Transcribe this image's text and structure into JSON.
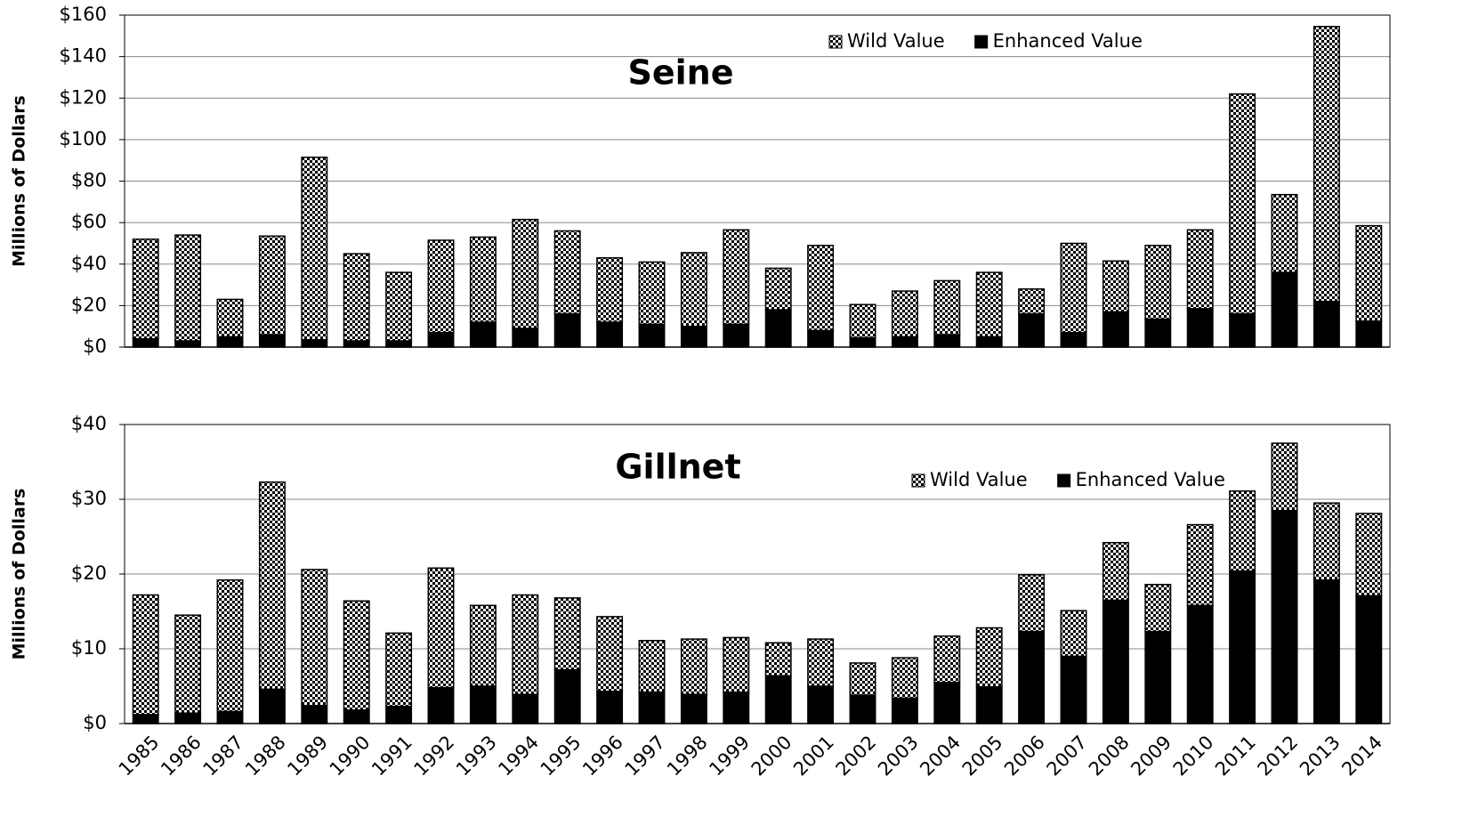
{
  "chart_data": [
    {
      "type": "stacked-bar",
      "title": "Seine",
      "ylabel": "Millions of Dollars",
      "ylim": [
        0,
        160
      ],
      "yticks": [
        {
          "value": 0,
          "label": "$0"
        },
        {
          "value": 20,
          "label": "$20"
        },
        {
          "value": 40,
          "label": "$40"
        },
        {
          "value": 60,
          "label": "$60"
        },
        {
          "value": 80,
          "label": "$80"
        },
        {
          "value": 100,
          "label": "$100"
        },
        {
          "value": 120,
          "label": "$120"
        },
        {
          "value": 140,
          "label": "$140"
        },
        {
          "value": 160,
          "label": "$160"
        }
      ],
      "grid": true,
      "legend": "top-right",
      "series": [
        {
          "name": "Wild Value",
          "color": "#000000",
          "pattern": "checker",
          "values": [
            48,
            51,
            18,
            47.5,
            88,
            42,
            33,
            44.5,
            41,
            52.5,
            40,
            31,
            30,
            35.5,
            45.5,
            20,
            41,
            16,
            22,
            26,
            31,
            12,
            43,
            24.5,
            35.5,
            38,
            106,
            37.5,
            132.5,
            46
          ]
        },
        {
          "name": "Enhanced Value",
          "color": "#000000",
          "values": [
            4,
            3,
            5,
            6,
            3.5,
            3,
            3,
            7,
            12,
            9,
            16,
            12,
            11,
            10,
            11,
            18,
            8,
            4.5,
            5,
            6,
            5,
            16,
            7,
            17,
            13.5,
            18.5,
            16,
            36,
            22,
            12.5
          ]
        }
      ]
    },
    {
      "type": "stacked-bar",
      "title": "Gillnet",
      "ylabel": "Millions of Dollars",
      "categories": [
        "1985",
        "1986",
        "1987",
        "1988",
        "1989",
        "1990",
        "1991",
        "1992",
        "1993",
        "1994",
        "1995",
        "1996",
        "1997",
        "1998",
        "1999",
        "2000",
        "2001",
        "2002",
        "2003",
        "2004",
        "2005",
        "2006",
        "2007",
        "2008",
        "2009",
        "2010",
        "2011",
        "2012",
        "2013",
        "2014"
      ],
      "ylim": [
        0,
        40
      ],
      "yticks": [
        {
          "value": 0,
          "label": "$0"
        },
        {
          "value": 10,
          "label": "$10"
        },
        {
          "value": 20,
          "label": "$20"
        },
        {
          "value": 30,
          "label": "$30"
        },
        {
          "value": 40,
          "label": "$40"
        }
      ],
      "grid": true,
      "legend": "top-right",
      "series": [
        {
          "name": "Wild Value",
          "color": "#000000",
          "pattern": "checker",
          "values": [
            16,
            13.1,
            17.6,
            27.7,
            18.2,
            14.6,
            9.8,
            16,
            10.8,
            13.3,
            9.6,
            10,
            6.9,
            7.4,
            7.3,
            4.4,
            6.3,
            4.3,
            5.4,
            6.2,
            7.9,
            7.6,
            6.1,
            7.7,
            6.3,
            10.8,
            10.7,
            9,
            10.3,
            11
          ]
        },
        {
          "name": "Enhanced Value",
          "color": "#000000",
          "values": [
            1.2,
            1.4,
            1.6,
            4.6,
            2.4,
            1.8,
            2.3,
            4.8,
            5,
            3.9,
            7.2,
            4.3,
            4.2,
            3.9,
            4.2,
            6.4,
            5,
            3.8,
            3.4,
            5.5,
            4.9,
            12.3,
            9,
            16.5,
            12.3,
            15.8,
            20.4,
            28.5,
            19.2,
            17.1
          ]
        }
      ]
    }
  ]
}
